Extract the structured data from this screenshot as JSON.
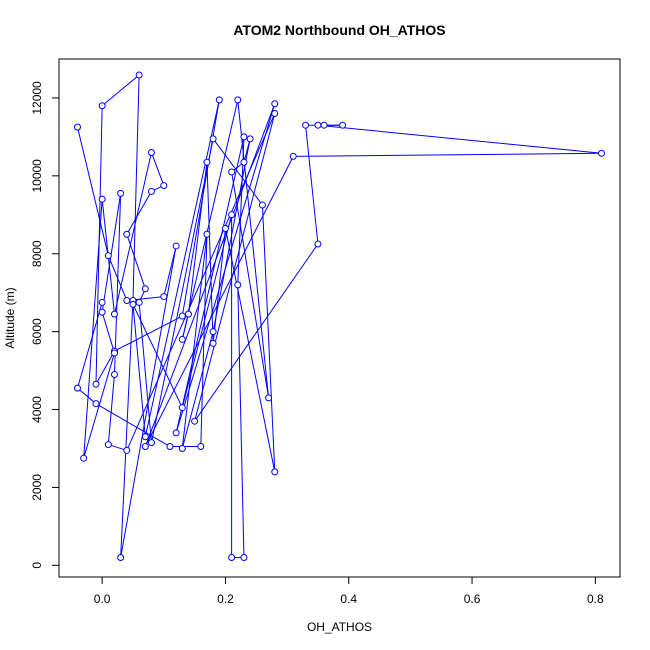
{
  "chart_data": {
    "type": "line",
    "title": "ATOM2 Northbound OH_ATHOS",
    "xlabel": "OH_ATHOS",
    "ylabel": "Altitude (m)",
    "xlim": [
      -0.07,
      0.84
    ],
    "ylim": [
      -300,
      13000
    ],
    "xticks": [
      0.0,
      0.2,
      0.4,
      0.6,
      0.8
    ],
    "xtick_labels": [
      "0.0",
      "0.2",
      "0.4",
      "0.6",
      "0.8"
    ],
    "yticks": [
      0,
      2000,
      4000,
      6000,
      8000,
      10000,
      12000
    ],
    "ytick_labels": [
      "0",
      "2000",
      "4000",
      "6000",
      "8000",
      "10000",
      "12000"
    ],
    "grid": false,
    "series": [
      {
        "color": "#0000FF",
        "marker": "open-circle",
        "points": [
          [
            -0.04,
            11250
          ],
          [
            0.01,
            7950
          ],
          [
            0.04,
            6800
          ],
          [
            0.1,
            6900
          ],
          [
            0.12,
            8200
          ],
          [
            0.03,
            200
          ],
          [
            0.05,
            6800
          ],
          [
            0.06,
            12590
          ],
          [
            0.0,
            11800
          ],
          [
            -0.01,
            4650
          ],
          [
            0.02,
            5500
          ],
          [
            0.13,
            6400
          ],
          [
            0.19,
            11950
          ],
          [
            0.07,
            3300
          ],
          [
            0.05,
            6700
          ],
          [
            0.13,
            4050
          ],
          [
            0.21,
            9000
          ],
          [
            0.21,
            200
          ],
          [
            0.23,
            200
          ],
          [
            0.22,
            7200
          ],
          [
            0.23,
            11000
          ],
          [
            0.12,
            3400
          ],
          [
            0.28,
            11850
          ],
          [
            0.07,
            3050
          ],
          [
            0.31,
            10500
          ],
          [
            0.81,
            10580
          ],
          [
            0.35,
            11300
          ],
          [
            0.36,
            11300
          ],
          [
            0.39,
            11300
          ],
          [
            0.33,
            11300
          ],
          [
            0.35,
            8250
          ],
          [
            0.15,
            3700
          ],
          [
            0.28,
            11600
          ],
          [
            0.04,
            2950
          ],
          [
            0.01,
            3100
          ],
          [
            0.02,
            4900
          ],
          [
            0.03,
            9550
          ],
          [
            0.0,
            6500
          ],
          [
            0.02,
            5450
          ],
          [
            -0.03,
            2750
          ],
          [
            0.0,
            9400
          ],
          [
            0.02,
            6450
          ],
          [
            0.08,
            10600
          ],
          [
            0.1,
            9750
          ],
          [
            0.08,
            9600
          ],
          [
            0.04,
            8500
          ],
          [
            0.07,
            7100
          ],
          [
            0.06,
            6750
          ],
          [
            0.08,
            3150
          ],
          [
            0.18,
            10950
          ],
          [
            0.26,
            9250
          ],
          [
            0.28,
            2400
          ],
          [
            0.2,
            8650
          ],
          [
            0.18,
            5700
          ],
          [
            0.17,
            10350
          ],
          [
            0.14,
            6450
          ],
          [
            0.13,
            5800
          ],
          [
            0.22,
            11950
          ],
          [
            0.27,
            4300
          ],
          [
            0.21,
            10100
          ],
          [
            0.23,
            10350
          ],
          [
            0.24,
            10950
          ],
          [
            0.18,
            6000
          ],
          [
            0.13,
            3000
          ],
          [
            0.17,
            8500
          ],
          [
            0.16,
            3050
          ],
          [
            0.11,
            3050
          ],
          [
            -0.01,
            4150
          ],
          [
            -0.04,
            4550
          ],
          [
            0.0,
            6750
          ]
        ]
      }
    ]
  }
}
